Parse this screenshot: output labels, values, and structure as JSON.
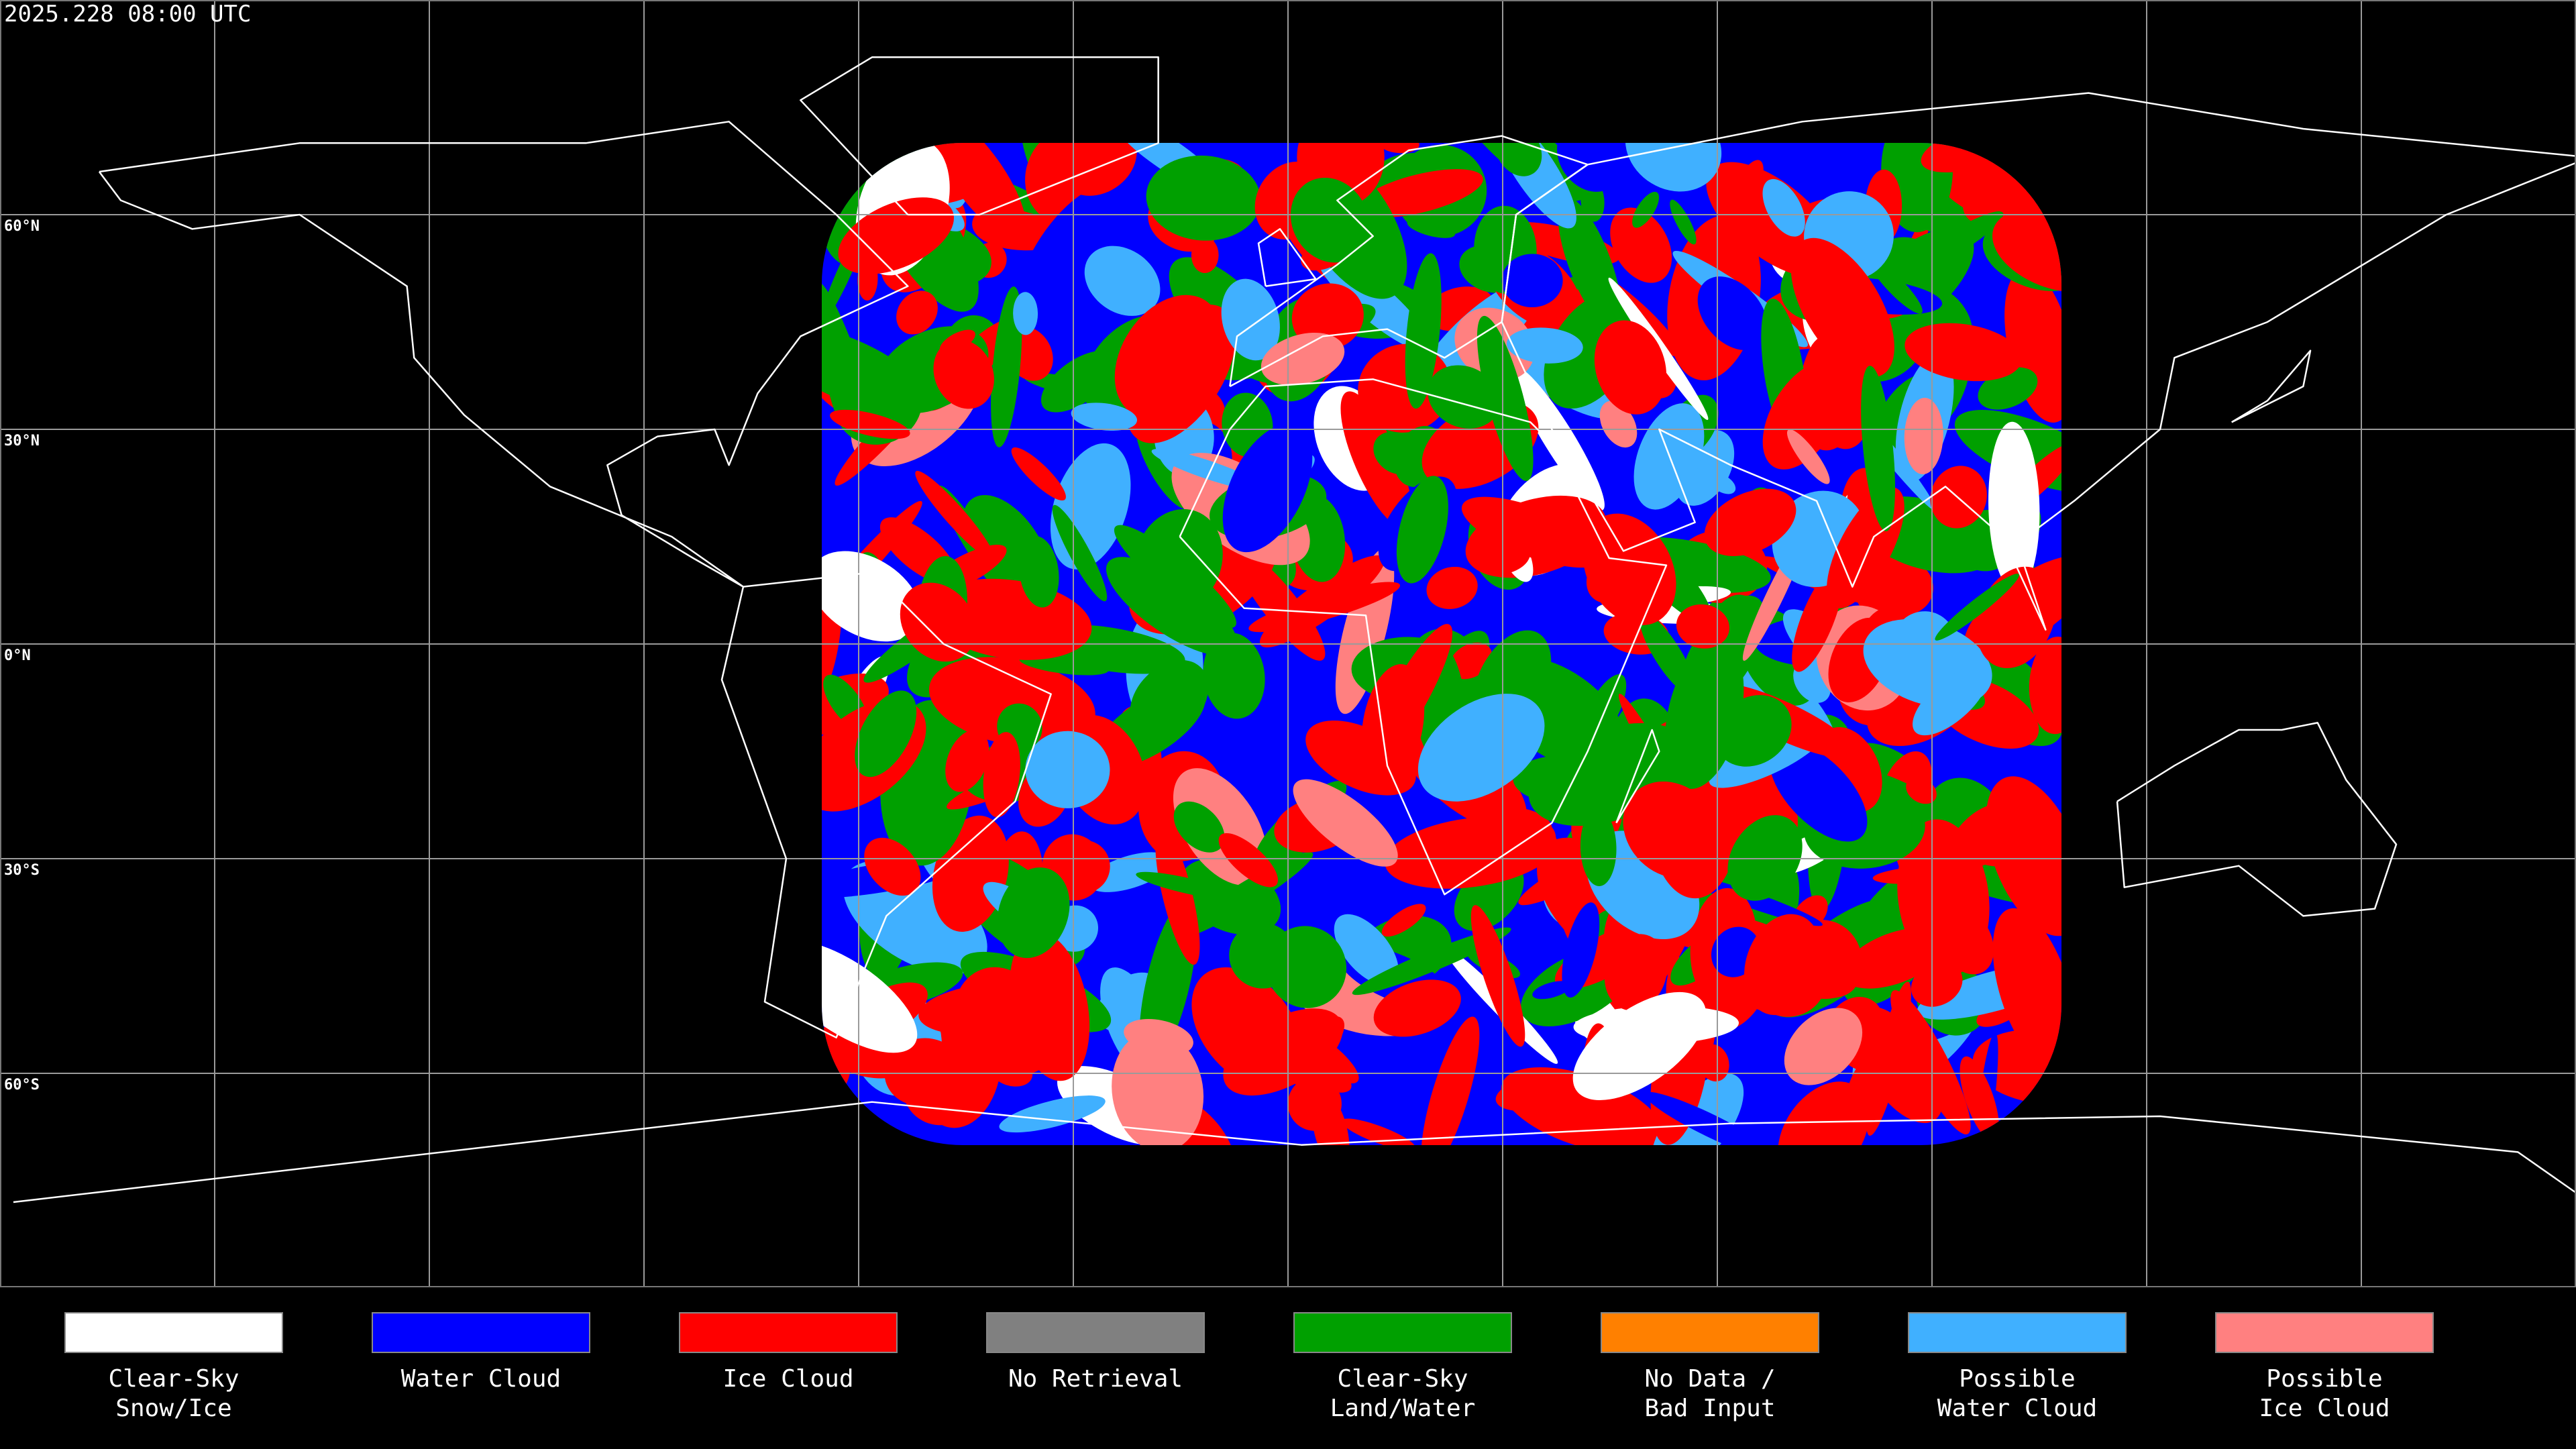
{
  "title": "2025.228 08:00 UTC",
  "latitude_labels": [
    "60°N",
    "30°N",
    "0°N",
    "30°S",
    "60°S"
  ],
  "legend": [
    {
      "label": [
        "Clear-Sky",
        "Snow/Ice"
      ],
      "color": "#ffffff"
    },
    {
      "label": [
        "Water Cloud"
      ],
      "color": "#0000ff"
    },
    {
      "label": [
        "Ice Cloud"
      ],
      "color": "#ff0000"
    },
    {
      "label": [
        "No Retrieval"
      ],
      "color": "#808080"
    },
    {
      "label": [
        "Clear-Sky",
        "Land/Water"
      ],
      "color": "#00a000"
    },
    {
      "label": [
        "No Data /",
        "Bad Input"
      ],
      "color": "#ff8000"
    },
    {
      "label": [
        "Possible",
        "Water Cloud"
      ],
      "color": "#40b0ff"
    },
    {
      "label": [
        "Possible",
        "Ice Cloud"
      ],
      "color": "#ff8080"
    }
  ]
}
